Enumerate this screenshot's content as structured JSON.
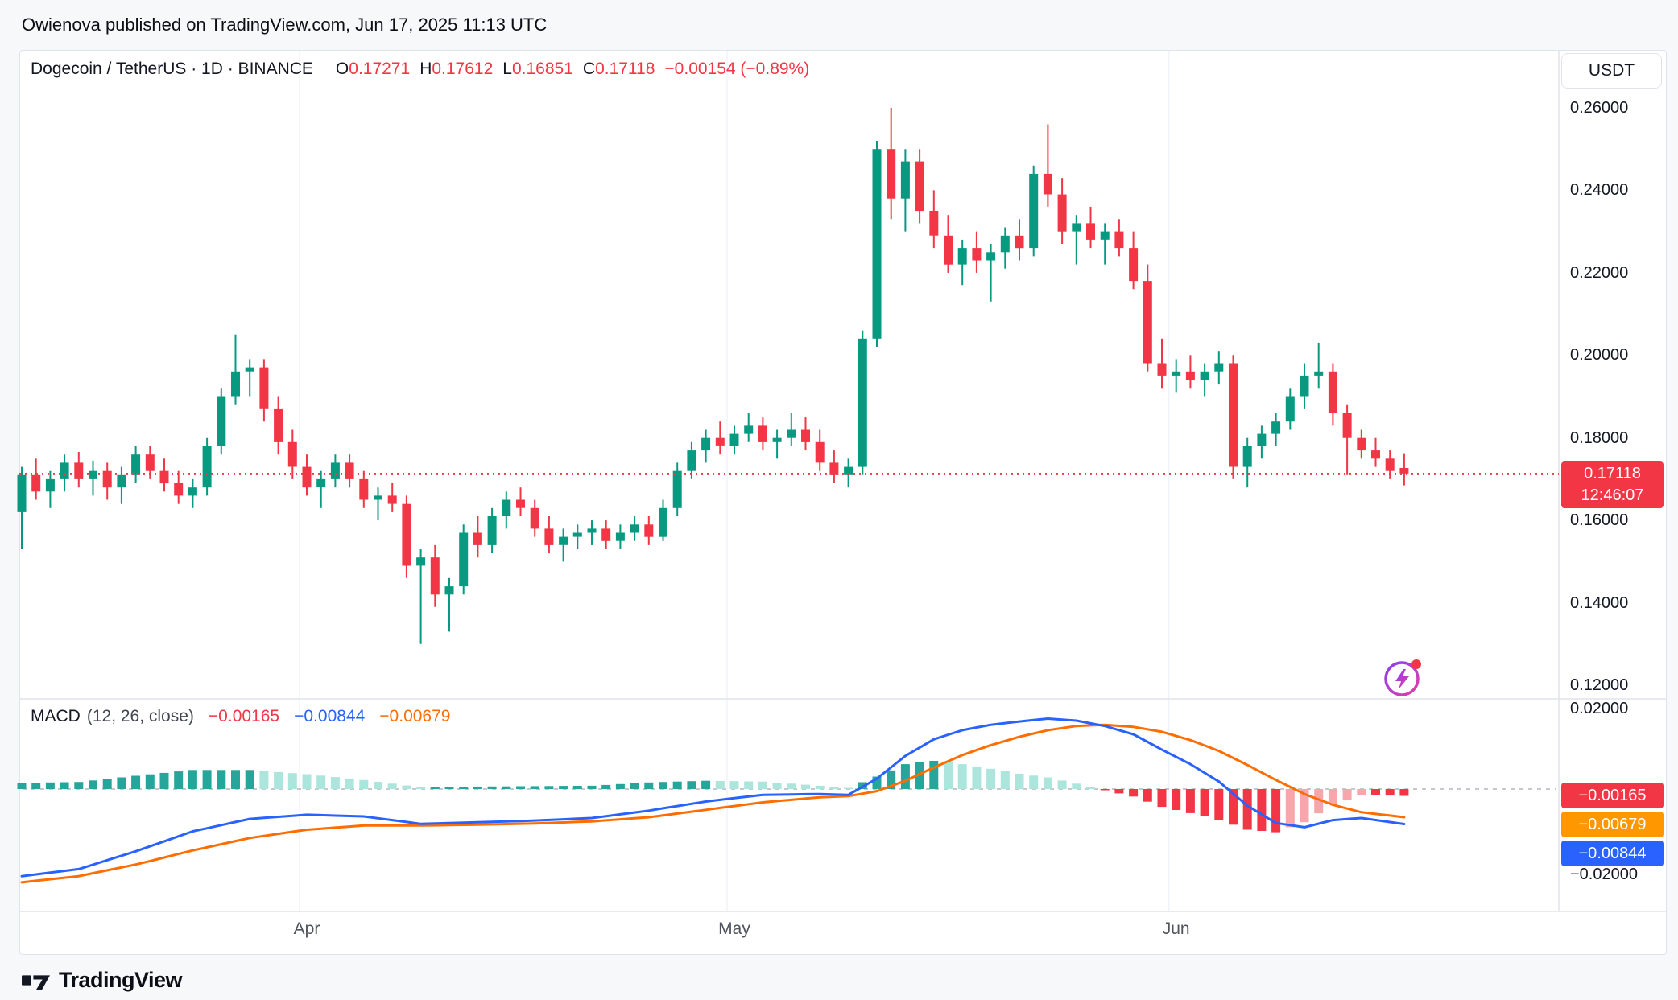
{
  "attribution": "Owienova published on TradingView.com, Jun 17, 2025 11:13 UTC",
  "header": {
    "symbol_title": "Dogecoin / TetherUS · 1D · BINANCE",
    "open_label": "O",
    "open_value": "0.17271",
    "high_label": "H",
    "high_value": "0.17612",
    "low_label": "L",
    "low_value": "0.16851",
    "close_label": "C",
    "close_value": "0.17118",
    "change": "−0.00154 (−0.89%)"
  },
  "currency_button_label": "USDT",
  "price_line": {
    "value": "0.17118",
    "countdown": "12:46:07"
  },
  "time_axis": {
    "labels": [
      {
        "label": "Apr",
        "index": 20
      },
      {
        "label": "May",
        "index": 50
      },
      {
        "label": "Jun",
        "index": 81
      }
    ]
  },
  "footer": {
    "brand": "TradingView"
  },
  "colors": {
    "up": "#089981",
    "down": "#f23645",
    "macd_line": "#2962ff",
    "signal_line": "#ff6d00",
    "hist_pos": "#26a69a",
    "hist_pos_weak": "#ace5dc",
    "hist_neg": "#f23645",
    "hist_neg_weak": "#f7a6ac",
    "accent_red": "#f23645"
  },
  "chart_data": {
    "type": "candlestick",
    "title": "Dogecoin / TetherUS",
    "interval": "1D",
    "exchange": "BINANCE",
    "price_axis": {
      "min": 0.12,
      "max": 0.26,
      "ticks": [
        {
          "label": "0.26000",
          "value": 0.26
        },
        {
          "label": "0.24000",
          "value": 0.24
        },
        {
          "label": "0.22000",
          "value": 0.22
        },
        {
          "label": "0.20000",
          "value": 0.2
        },
        {
          "label": "0.18000",
          "value": 0.18
        },
        {
          "label": "0.16000",
          "value": 0.16
        },
        {
          "label": "0.14000",
          "value": 0.14
        },
        {
          "label": "0.12000",
          "value": 0.12
        }
      ]
    },
    "candles": [
      [
        0.162,
        0.173,
        0.153,
        0.171
      ],
      [
        0.171,
        0.175,
        0.165,
        0.167
      ],
      [
        0.167,
        0.172,
        0.163,
        0.17
      ],
      [
        0.17,
        0.176,
        0.167,
        0.174
      ],
      [
        0.174,
        0.1765,
        0.168,
        0.17
      ],
      [
        0.17,
        0.1745,
        0.166,
        0.172
      ],
      [
        0.172,
        0.174,
        0.165,
        0.168
      ],
      [
        0.168,
        0.173,
        0.164,
        0.171
      ],
      [
        0.171,
        0.178,
        0.169,
        0.176
      ],
      [
        0.176,
        0.178,
        0.17,
        0.172
      ],
      [
        0.172,
        0.175,
        0.167,
        0.169
      ],
      [
        0.169,
        0.172,
        0.164,
        0.166
      ],
      [
        0.166,
        0.17,
        0.163,
        0.168
      ],
      [
        0.168,
        0.18,
        0.166,
        0.178
      ],
      [
        0.178,
        0.192,
        0.176,
        0.19
      ],
      [
        0.19,
        0.205,
        0.188,
        0.196
      ],
      [
        0.196,
        0.199,
        0.19,
        0.197
      ],
      [
        0.197,
        0.199,
        0.184,
        0.187
      ],
      [
        0.187,
        0.19,
        0.176,
        0.179
      ],
      [
        0.179,
        0.182,
        0.17,
        0.173
      ],
      [
        0.173,
        0.176,
        0.166,
        0.168
      ],
      [
        0.168,
        0.172,
        0.163,
        0.17
      ],
      [
        0.17,
        0.176,
        0.168,
        0.174
      ],
      [
        0.174,
        0.176,
        0.168,
        0.17
      ],
      [
        0.17,
        0.172,
        0.163,
        0.165
      ],
      [
        0.165,
        0.168,
        0.16,
        0.166
      ],
      [
        0.166,
        0.169,
        0.162,
        0.164
      ],
      [
        0.164,
        0.166,
        0.146,
        0.149
      ],
      [
        0.149,
        0.153,
        0.13,
        0.151
      ],
      [
        0.151,
        0.154,
        0.139,
        0.142
      ],
      [
        0.142,
        0.146,
        0.133,
        0.144
      ],
      [
        0.144,
        0.159,
        0.142,
        0.157
      ],
      [
        0.157,
        0.161,
        0.151,
        0.154
      ],
      [
        0.154,
        0.163,
        0.152,
        0.161
      ],
      [
        0.161,
        0.167,
        0.158,
        0.165
      ],
      [
        0.165,
        0.168,
        0.161,
        0.163
      ],
      [
        0.163,
        0.165,
        0.156,
        0.158
      ],
      [
        0.158,
        0.161,
        0.152,
        0.154
      ],
      [
        0.154,
        0.158,
        0.15,
        0.156
      ],
      [
        0.156,
        0.159,
        0.153,
        0.157
      ],
      [
        0.157,
        0.16,
        0.154,
        0.158
      ],
      [
        0.158,
        0.16,
        0.153,
        0.155
      ],
      [
        0.155,
        0.159,
        0.153,
        0.157
      ],
      [
        0.157,
        0.161,
        0.155,
        0.159
      ],
      [
        0.159,
        0.161,
        0.154,
        0.156
      ],
      [
        0.156,
        0.165,
        0.155,
        0.163
      ],
      [
        0.163,
        0.174,
        0.161,
        0.172
      ],
      [
        0.172,
        0.179,
        0.17,
        0.177
      ],
      [
        0.177,
        0.182,
        0.174,
        0.18
      ],
      [
        0.18,
        0.184,
        0.176,
        0.178
      ],
      [
        0.178,
        0.183,
        0.176,
        0.181
      ],
      [
        0.181,
        0.186,
        0.179,
        0.183
      ],
      [
        0.183,
        0.185,
        0.177,
        0.179
      ],
      [
        0.179,
        0.182,
        0.175,
        0.18
      ],
      [
        0.18,
        0.186,
        0.178,
        0.182
      ],
      [
        0.182,
        0.185,
        0.177,
        0.179
      ],
      [
        0.179,
        0.182,
        0.172,
        0.174
      ],
      [
        0.174,
        0.177,
        0.169,
        0.171
      ],
      [
        0.171,
        0.175,
        0.168,
        0.173
      ],
      [
        0.173,
        0.206,
        0.171,
        0.204
      ],
      [
        0.204,
        0.252,
        0.202,
        0.25
      ],
      [
        0.25,
        0.26,
        0.233,
        0.238
      ],
      [
        0.238,
        0.25,
        0.23,
        0.247
      ],
      [
        0.247,
        0.25,
        0.232,
        0.235
      ],
      [
        0.235,
        0.24,
        0.226,
        0.229
      ],
      [
        0.229,
        0.234,
        0.22,
        0.222
      ],
      [
        0.222,
        0.228,
        0.217,
        0.226
      ],
      [
        0.226,
        0.23,
        0.22,
        0.223
      ],
      [
        0.223,
        0.227,
        0.213,
        0.225
      ],
      [
        0.225,
        0.231,
        0.221,
        0.229
      ],
      [
        0.229,
        0.233,
        0.223,
        0.226
      ],
      [
        0.226,
        0.246,
        0.224,
        0.244
      ],
      [
        0.244,
        0.256,
        0.236,
        0.239
      ],
      [
        0.239,
        0.243,
        0.227,
        0.23
      ],
      [
        0.23,
        0.234,
        0.222,
        0.232
      ],
      [
        0.232,
        0.236,
        0.226,
        0.228
      ],
      [
        0.228,
        0.232,
        0.222,
        0.23
      ],
      [
        0.23,
        0.233,
        0.224,
        0.226
      ],
      [
        0.226,
        0.23,
        0.216,
        0.218
      ],
      [
        0.218,
        0.222,
        0.196,
        0.198
      ],
      [
        0.198,
        0.204,
        0.192,
        0.195
      ],
      [
        0.195,
        0.199,
        0.191,
        0.196
      ],
      [
        0.196,
        0.2,
        0.192,
        0.194
      ],
      [
        0.194,
        0.198,
        0.19,
        0.196
      ],
      [
        0.196,
        0.201,
        0.193,
        0.198
      ],
      [
        0.198,
        0.2,
        0.17,
        0.173
      ],
      [
        0.173,
        0.18,
        0.168,
        0.178
      ],
      [
        0.178,
        0.183,
        0.175,
        0.181
      ],
      [
        0.181,
        0.186,
        0.178,
        0.184
      ],
      [
        0.184,
        0.192,
        0.182,
        0.19
      ],
      [
        0.19,
        0.198,
        0.187,
        0.195
      ],
      [
        0.195,
        0.203,
        0.192,
        0.196
      ],
      [
        0.196,
        0.198,
        0.183,
        0.186
      ],
      [
        0.186,
        0.188,
        0.171,
        0.18
      ],
      [
        0.18,
        0.182,
        0.175,
        0.177
      ],
      [
        0.177,
        0.18,
        0.173,
        0.175
      ],
      [
        0.175,
        0.177,
        0.17,
        0.172
      ],
      [
        0.17271,
        0.17612,
        0.16851,
        0.17118
      ]
    ],
    "macd": {
      "type": "macd_indicator",
      "title": "MACD",
      "params": "(12, 26, close)",
      "hist_value": "−0.00165",
      "macd_value": "−0.00844",
      "signal_value": "−0.00679",
      "axis_ticks": [
        {
          "label": "0.02000",
          "value": 0.02
        },
        {
          "label": "−0.02000",
          "value": -0.02
        }
      ],
      "control_points": [
        [
          0,
          -0.021,
          -0.0225
        ],
        [
          4,
          -0.0193,
          -0.021
        ],
        [
          8,
          -0.015,
          -0.0182
        ],
        [
          12,
          -0.0102,
          -0.0148
        ],
        [
          16,
          -0.0072,
          -0.0118
        ],
        [
          20,
          -0.0062,
          -0.0098
        ],
        [
          24,
          -0.0066,
          -0.0088
        ],
        [
          28,
          -0.0084,
          -0.0088
        ],
        [
          32,
          -0.008,
          -0.0086
        ],
        [
          36,
          -0.0076,
          -0.0083
        ],
        [
          40,
          -0.007,
          -0.0078
        ],
        [
          44,
          -0.0052,
          -0.0068
        ],
        [
          48,
          -0.003,
          -0.005
        ],
        [
          52,
          -0.0014,
          -0.0032
        ],
        [
          56,
          -0.0012,
          -0.002
        ],
        [
          58,
          -0.0014,
          -0.0017
        ],
        [
          60,
          0.0025,
          -0.0005
        ],
        [
          62,
          0.008,
          0.002
        ],
        [
          64,
          0.012,
          0.0052
        ],
        [
          66,
          0.0142,
          0.0082
        ],
        [
          68,
          0.0155,
          0.0106
        ],
        [
          70,
          0.0163,
          0.0126
        ],
        [
          72,
          0.017,
          0.0142
        ],
        [
          74,
          0.0165,
          0.0152
        ],
        [
          76,
          0.0152,
          0.0155
        ],
        [
          78,
          0.0132,
          0.015
        ],
        [
          80,
          0.0095,
          0.0138
        ],
        [
          82,
          0.006,
          0.0118
        ],
        [
          84,
          0.0018,
          0.0092
        ],
        [
          86,
          -0.004,
          0.0058
        ],
        [
          88,
          -0.0082,
          0.0022
        ],
        [
          90,
          -0.0092,
          -0.0012
        ],
        [
          92,
          -0.0075,
          -0.0038
        ],
        [
          94,
          -0.007,
          -0.0056
        ],
        [
          97,
          -0.00844,
          -0.00679
        ]
      ]
    }
  }
}
